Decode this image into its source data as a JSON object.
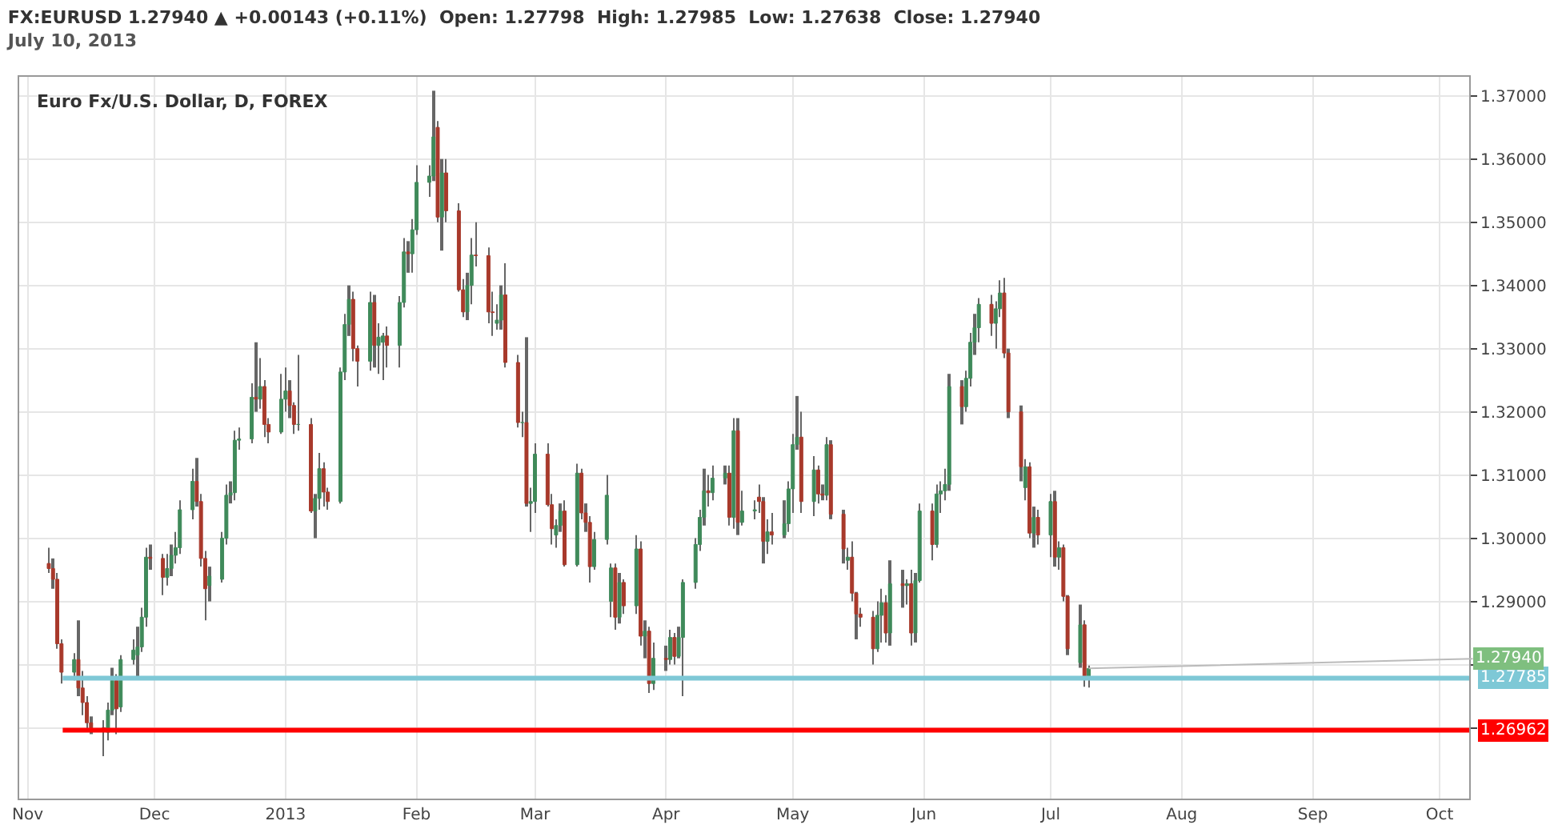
{
  "chart_data": {
    "type": "candlestick",
    "title": "FX:EURUSD 1.27940 ▲ +0.00143 (+0.11%)  Open: 1.27798  High: 1.27985  Low: 1.27638  Close: 1.27940",
    "subtitle": "July 10, 2013",
    "annotations": [
      "Euro Fx/U.S. Dollar, D, FOREX",
      {
        "text": "1.27940",
        "x": "2013-07-10",
        "y": 1.2794
      }
    ],
    "x": [
      "2012-11-06",
      "2012-11-07",
      "2012-11-08",
      "2012-11-09",
      "2012-11-12",
      "2012-11-13",
      "2012-11-14",
      "2012-11-15",
      "2012-11-16",
      "2012-11-19",
      "2012-11-20",
      "2012-11-21",
      "2012-11-22",
      "2012-11-23",
      "2012-11-26",
      "2012-11-27",
      "2012-11-28",
      "2012-11-29",
      "2012-11-30",
      "2012-12-03",
      "2012-12-04",
      "2012-12-05",
      "2012-12-06",
      "2012-12-07",
      "2012-12-10",
      "2012-12-11",
      "2012-12-12",
      "2012-12-13",
      "2012-12-14",
      "2012-12-17",
      "2012-12-18",
      "2012-12-19",
      "2012-12-20",
      "2012-12-21",
      "2012-12-24",
      "2012-12-25",
      "2012-12-26",
      "2012-12-27",
      "2012-12-28",
      "2012-12-31",
      "2013-01-01",
      "2013-01-02",
      "2013-01-03",
      "2013-01-04",
      "2013-01-07",
      "2013-01-08",
      "2013-01-09",
      "2013-01-10",
      "2013-01-11",
      "2013-01-14",
      "2013-01-15",
      "2013-01-16",
      "2013-01-17",
      "2013-01-18",
      "2013-01-21",
      "2013-01-22",
      "2013-01-23",
      "2013-01-24",
      "2013-01-25",
      "2013-01-28",
      "2013-01-29",
      "2013-01-30",
      "2013-01-31",
      "2013-02-01",
      "2013-02-04",
      "2013-02-05",
      "2013-02-06",
      "2013-02-07",
      "2013-02-08",
      "2013-02-11",
      "2013-02-12",
      "2013-02-13",
      "2013-02-14",
      "2013-02-15",
      "2013-02-18",
      "2013-02-19",
      "2013-02-20",
      "2013-02-21",
      "2013-02-22",
      "2013-02-25",
      "2013-02-26",
      "2013-02-27",
      "2013-02-28",
      "2013-03-01",
      "2013-03-04",
      "2013-03-05",
      "2013-03-06",
      "2013-03-07",
      "2013-03-08",
      "2013-03-11",
      "2013-03-12",
      "2013-03-13",
      "2013-03-14",
      "2013-03-15",
      "2013-03-18",
      "2013-03-19",
      "2013-03-20",
      "2013-03-21",
      "2013-03-22",
      "2013-03-25",
      "2013-03-26",
      "2013-03-27",
      "2013-03-28",
      "2013-03-29",
      "2013-04-01",
      "2013-04-02",
      "2013-04-03",
      "2013-04-04",
      "2013-04-05",
      "2013-04-08",
      "2013-04-09",
      "2013-04-10",
      "2013-04-11",
      "2013-04-12",
      "2013-04-15",
      "2013-04-16",
      "2013-04-17",
      "2013-04-18",
      "2013-04-19",
      "2013-04-22",
      "2013-04-23",
      "2013-04-24",
      "2013-04-25",
      "2013-04-26",
      "2013-04-29",
      "2013-04-30",
      "2013-05-01",
      "2013-05-02",
      "2013-05-03",
      "2013-05-06",
      "2013-05-07",
      "2013-05-08",
      "2013-05-09",
      "2013-05-10",
      "2013-05-13",
      "2013-05-14",
      "2013-05-15",
      "2013-05-16",
      "2013-05-17",
      "2013-05-20",
      "2013-05-21",
      "2013-05-22",
      "2013-05-23",
      "2013-05-24",
      "2013-05-27",
      "2013-05-28",
      "2013-05-29",
      "2013-05-30",
      "2013-05-31",
      "2013-06-03",
      "2013-06-04",
      "2013-06-05",
      "2013-06-06",
      "2013-06-07",
      "2013-06-10",
      "2013-06-11",
      "2013-06-12",
      "2013-06-13",
      "2013-06-14",
      "2013-06-17",
      "2013-06-18",
      "2013-06-19",
      "2013-06-20",
      "2013-06-21",
      "2013-06-24",
      "2013-06-25",
      "2013-06-26",
      "2013-06-27",
      "2013-06-28",
      "2013-07-01",
      "2013-07-02",
      "2013-07-03",
      "2013-07-04",
      "2013-07-05",
      "2013-07-08",
      "2013-07-09",
      "2013-07-10"
    ],
    "ohlc": [
      [
        1.296,
        1.2985,
        1.2945,
        1.2952
      ],
      [
        1.2952,
        1.2968,
        1.292,
        1.2935
      ],
      [
        1.2935,
        1.2945,
        1.2825,
        1.2833
      ],
      [
        1.2833,
        1.284,
        1.277,
        1.2788
      ],
      [
        1.2788,
        1.2818,
        1.2775,
        1.2808
      ],
      [
        1.2808,
        1.287,
        1.275,
        1.2763
      ],
      [
        1.2763,
        1.279,
        1.272,
        1.274
      ],
      [
        1.274,
        1.275,
        1.2695,
        1.2708
      ],
      [
        1.2708,
        1.2718,
        1.269,
        1.27
      ],
      [
        1.27,
        1.2712,
        1.2655,
        1.2697
      ],
      [
        1.2693,
        1.274,
        1.268,
        1.2728
      ],
      [
        1.2728,
        1.2795,
        1.272,
        1.2775
      ],
      [
        1.2775,
        1.2785,
        1.269,
        1.273
      ],
      [
        1.2733,
        1.2815,
        1.2725,
        1.2808
      ],
      [
        1.2808,
        1.284,
        1.28,
        1.2823
      ],
      [
        1.2815,
        1.286,
        1.278,
        1.2828
      ],
      [
        1.2828,
        1.289,
        1.282,
        1.2875
      ],
      [
        1.2875,
        1.2985,
        1.286,
        1.297
      ],
      [
        1.297,
        1.299,
        1.295,
        1.2968
      ],
      [
        1.2968,
        1.2975,
        1.291,
        1.2938
      ],
      [
        1.2938,
        1.2975,
        1.2925,
        1.2952
      ],
      [
        1.2952,
        1.299,
        1.294,
        1.2973
      ],
      [
        1.2973,
        1.301,
        1.296,
        1.2985
      ],
      [
        1.2985,
        1.306,
        1.2975,
        1.3045
      ],
      [
        1.3045,
        1.311,
        1.303,
        1.309
      ],
      [
        1.309,
        1.3127,
        1.305,
        1.3058
      ],
      [
        1.3058,
        1.307,
        1.2955,
        1.2968
      ],
      [
        1.2968,
        1.298,
        1.287,
        1.292
      ],
      [
        1.2925,
        1.2955,
        1.29,
        1.294
      ],
      [
        1.2935,
        1.301,
        1.293,
        1.3
      ],
      [
        1.3,
        1.3085,
        1.299,
        1.3068
      ],
      [
        1.3068,
        1.309,
        1.3055,
        1.3072
      ],
      [
        1.3072,
        1.317,
        1.306,
        1.3155
      ],
      [
        1.3155,
        1.3175,
        1.314,
        1.3157
      ],
      [
        1.3157,
        1.3245,
        1.315,
        1.3223
      ],
      [
        1.3223,
        1.331,
        1.32,
        1.322
      ],
      [
        1.322,
        1.3285,
        1.3205,
        1.324
      ],
      [
        1.324,
        1.325,
        1.316,
        1.318
      ],
      [
        1.318,
        1.319,
        1.315,
        1.3168
      ],
      [
        1.3168,
        1.326,
        1.3165,
        1.322
      ],
      [
        1.322,
        1.327,
        1.32,
        1.3233
      ],
      [
        1.3233,
        1.325,
        1.319,
        1.321
      ],
      [
        1.321,
        1.3215,
        1.3165,
        1.318
      ],
      [
        1.318,
        1.329,
        1.317,
        1.318
      ],
      [
        1.318,
        1.319,
        1.304,
        1.3043
      ],
      [
        1.3043,
        1.307,
        1.3,
        1.3063
      ],
      [
        1.3063,
        1.3135,
        1.3045,
        1.311
      ],
      [
        1.311,
        1.312,
        1.305,
        1.3073
      ],
      [
        1.3073,
        1.308,
        1.3045,
        1.3058
      ],
      [
        1.3058,
        1.327,
        1.3055,
        1.3263
      ],
      [
        1.3263,
        1.3355,
        1.325,
        1.3338
      ],
      [
        1.3338,
        1.34,
        1.332,
        1.3378
      ],
      [
        1.3378,
        1.339,
        1.328,
        1.33
      ],
      [
        1.33,
        1.3305,
        1.324,
        1.328
      ],
      [
        1.328,
        1.339,
        1.3265,
        1.3373
      ],
      [
        1.3373,
        1.3385,
        1.327,
        1.3305
      ],
      [
        1.3305,
        1.334,
        1.326,
        1.3318
      ],
      [
        1.331,
        1.3325,
        1.325,
        1.332
      ],
      [
        1.332,
        1.3335,
        1.327,
        1.3305
      ],
      [
        1.3305,
        1.3383,
        1.327,
        1.3373
      ],
      [
        1.3373,
        1.3475,
        1.3365,
        1.3453
      ],
      [
        1.3453,
        1.347,
        1.342,
        1.345
      ],
      [
        1.345,
        1.3505,
        1.342,
        1.3488
      ],
      [
        1.3488,
        1.359,
        1.348,
        1.3563
      ],
      [
        1.3563,
        1.359,
        1.354,
        1.3573
      ],
      [
        1.3573,
        1.3708,
        1.3565,
        1.3635
      ],
      [
        1.365,
        1.366,
        1.35,
        1.3508
      ],
      [
        1.3508,
        1.36,
        1.3455,
        1.3578
      ],
      [
        1.3578,
        1.36,
        1.35,
        1.3518
      ],
      [
        1.3518,
        1.353,
        1.339,
        1.3393
      ],
      [
        1.3393,
        1.341,
        1.335,
        1.3358
      ],
      [
        1.3358,
        1.342,
        1.3345,
        1.34
      ],
      [
        1.34,
        1.3475,
        1.337,
        1.3448
      ],
      [
        1.3448,
        1.35,
        1.343,
        1.3447
      ],
      [
        1.3447,
        1.346,
        1.334,
        1.3358
      ],
      [
        1.3358,
        1.339,
        1.332,
        1.3357
      ],
      [
        1.334,
        1.337,
        1.333,
        1.3345
      ],
      [
        1.3345,
        1.34,
        1.333,
        1.3385
      ],
      [
        1.3385,
        1.3435,
        1.327,
        1.3278
      ],
      [
        1.3278,
        1.329,
        1.3175,
        1.3183
      ],
      [
        1.3183,
        1.32,
        1.316,
        1.3183
      ],
      [
        1.3183,
        1.3318,
        1.305,
        1.3055
      ],
      [
        1.3055,
        1.308,
        1.301,
        1.3058
      ],
      [
        1.3058,
        1.315,
        1.304,
        1.3133
      ],
      [
        1.3133,
        1.315,
        1.305,
        1.3053
      ],
      [
        1.3053,
        1.307,
        1.299,
        1.3015
      ],
      [
        1.3005,
        1.303,
        1.2985,
        1.302
      ],
      [
        1.302,
        1.3055,
        1.301,
        1.3043
      ],
      [
        1.3043,
        1.306,
        1.2955,
        1.2958
      ],
      [
        1.2958,
        1.3118,
        1.2955,
        1.3103
      ],
      [
        1.3103,
        1.311,
        1.303,
        1.304
      ],
      [
        1.304,
        1.3055,
        1.301,
        1.3025
      ],
      [
        1.3025,
        1.3035,
        1.293,
        1.2955
      ],
      [
        1.2955,
        1.301,
        1.295,
        1.2998
      ],
      [
        1.2998,
        1.31,
        1.299,
        1.3068
      ],
      [
        1.29,
        1.296,
        1.2875,
        1.2953
      ],
      [
        1.2953,
        1.296,
        1.2855,
        1.2875
      ],
      [
        1.2875,
        1.2945,
        1.2865,
        1.293
      ],
      [
        1.293,
        1.2935,
        1.288,
        1.2893
      ],
      [
        1.2893,
        1.3005,
        1.288,
        1.2983
      ],
      [
        1.2983,
        1.2995,
        1.283,
        1.2845
      ],
      [
        1.2845,
        1.287,
        1.281,
        1.2853
      ],
      [
        1.2853,
        1.286,
        1.2755,
        1.277
      ],
      [
        1.277,
        1.2835,
        1.276,
        1.281
      ],
      [
        1.281,
        1.283,
        1.279,
        1.2808
      ],
      [
        1.2808,
        1.2855,
        1.28,
        1.2843
      ],
      [
        1.2843,
        1.285,
        1.28,
        1.2813
      ],
      [
        1.2813,
        1.286,
        1.281,
        1.2843
      ],
      [
        1.2843,
        1.2935,
        1.275,
        1.293
      ],
      [
        1.293,
        1.3,
        1.292,
        1.299
      ],
      [
        1.299,
        1.3045,
        1.298,
        1.3033
      ],
      [
        1.3033,
        1.311,
        1.302,
        1.3075
      ],
      [
        1.3075,
        1.31,
        1.305,
        1.3072
      ],
      [
        1.3072,
        1.3115,
        1.306,
        1.3095
      ],
      [
        1.3095,
        1.3115,
        1.3085,
        1.3103
      ],
      [
        1.3103,
        1.3115,
        1.302,
        1.3033
      ],
      [
        1.3033,
        1.319,
        1.3015,
        1.317
      ],
      [
        1.317,
        1.319,
        1.3005,
        1.3025
      ],
      [
        1.3025,
        1.3075,
        1.302,
        1.3043
      ],
      [
        1.3043,
        1.306,
        1.303,
        1.3045
      ],
      [
        1.3065,
        1.3085,
        1.304,
        1.3058
      ],
      [
        1.3058,
        1.3065,
        1.296,
        1.2995
      ],
      [
        1.2995,
        1.303,
        1.2975,
        1.301
      ],
      [
        1.301,
        1.304,
        1.299,
        1.3005
      ],
      [
        1.3005,
        1.306,
        1.3,
        1.3023
      ],
      [
        1.3023,
        1.309,
        1.301,
        1.3078
      ],
      [
        1.3078,
        1.3165,
        1.304,
        1.3148
      ],
      [
        1.3148,
        1.3225,
        1.314,
        1.316
      ],
      [
        1.316,
        1.32,
        1.304,
        1.3058
      ],
      [
        1.3058,
        1.313,
        1.3035,
        1.3108
      ],
      [
        1.3108,
        1.3115,
        1.3055,
        1.307
      ],
      [
        1.307,
        1.3085,
        1.306,
        1.3068
      ],
      [
        1.3068,
        1.316,
        1.306,
        1.3148
      ],
      [
        1.3148,
        1.3155,
        1.303,
        1.3038
      ],
      [
        1.3038,
        1.3045,
        1.296,
        1.2983
      ],
      [
        1.2965,
        1.2985,
        1.295,
        1.297
      ],
      [
        1.297,
        1.2995,
        1.29,
        1.2913
      ],
      [
        1.2913,
        1.2915,
        1.284,
        1.288
      ],
      [
        1.288,
        1.289,
        1.286,
        1.2875
      ],
      [
        1.2875,
        1.2885,
        1.28,
        1.2825
      ],
      [
        1.2825,
        1.29,
        1.282,
        1.2878
      ],
      [
        1.2878,
        1.292,
        1.2835,
        1.2898
      ],
      [
        1.2898,
        1.291,
        1.2835,
        1.285
      ],
      [
        1.285,
        1.2965,
        1.283,
        1.2928
      ],
      [
        1.2928,
        1.295,
        1.289,
        1.2925
      ],
      [
        1.2925,
        1.2935,
        1.2895,
        1.2928
      ],
      [
        1.2928,
        1.295,
        1.283,
        1.285
      ],
      [
        1.285,
        1.2945,
        1.2835,
        1.2933
      ],
      [
        1.2933,
        1.3055,
        1.293,
        1.3043
      ],
      [
        1.3043,
        1.3055,
        1.2965,
        1.299
      ],
      [
        1.299,
        1.3085,
        1.2985,
        1.307
      ],
      [
        1.307,
        1.309,
        1.304,
        1.3075
      ],
      [
        1.3075,
        1.311,
        1.306,
        1.3085
      ],
      [
        1.3085,
        1.326,
        1.3075,
        1.324
      ],
      [
        1.324,
        1.325,
        1.318,
        1.3208
      ],
      [
        1.3208,
        1.3265,
        1.32,
        1.3253
      ],
      [
        1.3253,
        1.3325,
        1.324,
        1.331
      ],
      [
        1.331,
        1.3355,
        1.329,
        1.3333
      ],
      [
        1.3333,
        1.338,
        1.331,
        1.337
      ],
      [
        1.337,
        1.3385,
        1.332,
        1.334
      ],
      [
        1.334,
        1.3375,
        1.33,
        1.3363
      ],
      [
        1.3363,
        1.3408,
        1.335,
        1.3388
      ],
      [
        1.3388,
        1.3412,
        1.3285,
        1.3293
      ],
      [
        1.3293,
        1.33,
        1.319,
        1.32
      ],
      [
        1.32,
        1.321,
        1.309,
        1.3113
      ],
      [
        1.308,
        1.3125,
        1.306,
        1.3113
      ],
      [
        1.3113,
        1.312,
        1.3,
        1.3008
      ],
      [
        1.3008,
        1.305,
        1.2985,
        1.3033
      ],
      [
        1.3033,
        1.3045,
        1.299,
        1.3005
      ],
      [
        1.3005,
        1.307,
        1.297,
        1.3058
      ],
      [
        1.3058,
        1.3075,
        1.2955,
        1.297
      ],
      [
        1.297,
        1.2995,
        1.295,
        1.2985
      ],
      [
        1.2985,
        1.299,
        1.29,
        1.2908
      ],
      [
        1.2908,
        1.291,
        1.2815,
        1.2825
      ],
      [
        1.2803,
        1.2895,
        1.2795,
        1.2863
      ],
      [
        1.2863,
        1.287,
        1.2765,
        1.278
      ],
      [
        1.27798,
        1.27985,
        1.27638,
        1.2794
      ]
    ],
    "xlim": [
      "2012-10-30",
      "2013-10-08"
    ],
    "xticks": [
      {
        "value": "2012-11-01",
        "label": "Nov"
      },
      {
        "value": "2012-12-01",
        "label": "Dec"
      },
      {
        "value": "2013-01-01",
        "label": "2013"
      },
      {
        "value": "2013-02-01",
        "label": "Feb"
      },
      {
        "value": "2013-03-01",
        "label": "Mar"
      },
      {
        "value": "2013-04-01",
        "label": "Apr"
      },
      {
        "value": "2013-05-01",
        "label": "May"
      },
      {
        "value": "2013-06-01",
        "label": "Jun"
      },
      {
        "value": "2013-07-01",
        "label": "Jul"
      },
      {
        "value": "2013-08-01",
        "label": "Aug"
      },
      {
        "value": "2013-09-01",
        "label": "Sep"
      },
      {
        "value": "2013-10-01",
        "label": "Oct"
      }
    ],
    "ylim": [
      1.2588,
      1.373
    ],
    "yticks": [
      {
        "value": 1.27,
        "label": null
      },
      {
        "value": 1.28,
        "label": null
      },
      {
        "value": 1.29,
        "label": "1.29000"
      },
      {
        "value": 1.3,
        "label": "1.30000"
      },
      {
        "value": 1.31,
        "label": "1.31000"
      },
      {
        "value": 1.32,
        "label": "1.32000"
      },
      {
        "value": 1.33,
        "label": "1.33000"
      },
      {
        "value": 1.34,
        "label": "1.34000"
      },
      {
        "value": 1.35,
        "label": "1.35000"
      },
      {
        "value": 1.36,
        "label": "1.36000"
      },
      {
        "value": 1.37,
        "label": "1.37000"
      }
    ],
    "ref_lines": [
      {
        "axis": "y",
        "value": 1.27785,
        "label": "1.27785",
        "color": "#7ec8d6"
      },
      {
        "axis": "y",
        "value": 1.26962,
        "label": "1.26962",
        "color": "#ff0000"
      }
    ],
    "grid": true
  }
}
